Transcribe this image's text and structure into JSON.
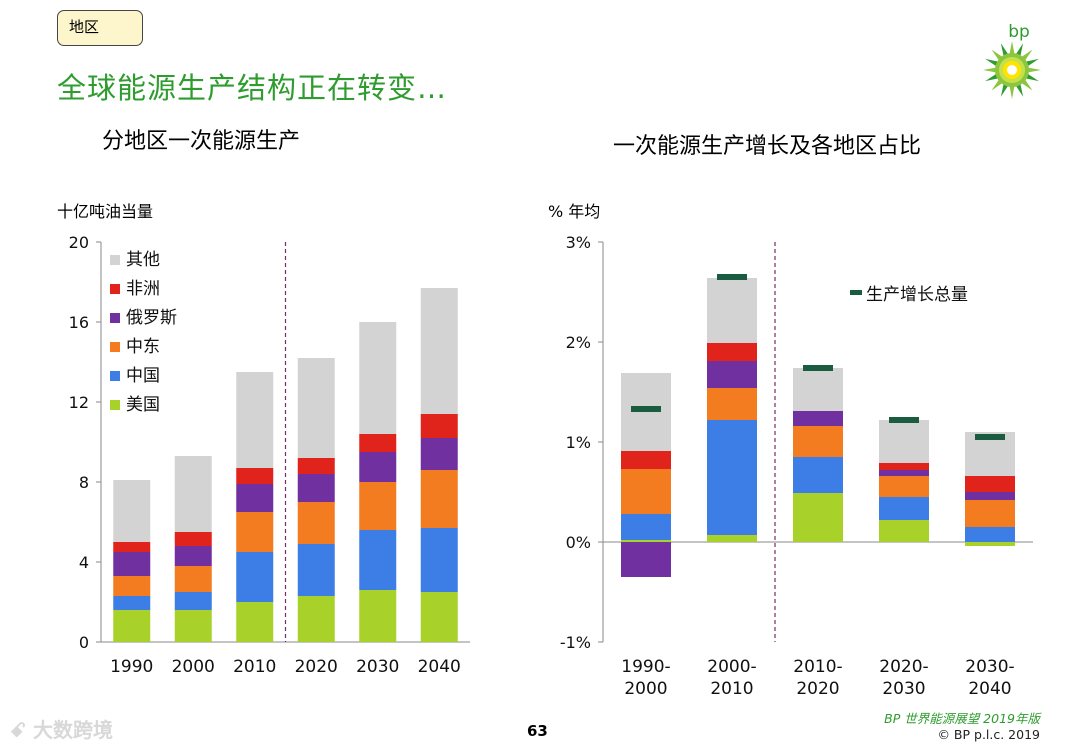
{
  "header": {
    "tag": "地区",
    "title": "全球能源生产结构正在转变…",
    "logo_text": "bp"
  },
  "left_subtitle": "分地区一次能源生产",
  "right_subtitle": "一次能源生产增长及各地区占比",
  "left_unit": "十亿吨油当量",
  "right_unit": "% 年均",
  "footer": {
    "page": "63",
    "source": "BP 世界能源展望 2019年版",
    "copyright": "© BP p.l.c. 2019",
    "watermark": "大数跨境"
  },
  "colors": {
    "other": "#d4d3d4",
    "africa": "#e0231b",
    "russia": "#7030a0",
    "middle_east": "#f47c20",
    "china": "#3c7ee5",
    "us": "#a8d22a",
    "total": "#1a5c40",
    "title": "#2e9c2e"
  },
  "chart_data": [
    {
      "type": "bar",
      "stacked": true,
      "title": "分地区一次能源生产",
      "ylabel": "十亿吨油当量",
      "categories": [
        "1990",
        "2000",
        "2010",
        "2020",
        "2030",
        "2040"
      ],
      "ylim": [
        0,
        20
      ],
      "yticks": [
        0,
        4,
        8,
        12,
        16,
        20
      ],
      "ytick_labels": [
        "0",
        "4",
        "8",
        "12",
        "16",
        "20"
      ],
      "divider_after_index": 2,
      "legend": [
        "其他",
        "非洲",
        "俄罗斯",
        "中东",
        "中国",
        "美国"
      ],
      "series": [
        {
          "name": "美国",
          "key": "us",
          "values": [
            1.6,
            1.6,
            2.0,
            2.3,
            2.6,
            2.5
          ]
        },
        {
          "name": "中国",
          "key": "china",
          "values": [
            0.7,
            0.9,
            2.5,
            2.6,
            3.0,
            3.2
          ]
        },
        {
          "name": "中东",
          "key": "middle_east",
          "values": [
            1.0,
            1.3,
            2.0,
            2.1,
            2.4,
            2.9
          ]
        },
        {
          "name": "俄罗斯",
          "key": "russia",
          "values": [
            1.2,
            1.0,
            1.4,
            1.4,
            1.5,
            1.6
          ]
        },
        {
          "name": "非洲",
          "key": "africa",
          "values": [
            0.5,
            0.7,
            0.8,
            0.8,
            0.9,
            1.2
          ]
        },
        {
          "name": "其他",
          "key": "other",
          "values": [
            3.1,
            3.8,
            4.8,
            5.0,
            5.6,
            6.3
          ]
        }
      ]
    },
    {
      "type": "bar",
      "stacked": true,
      "title": "一次能源生产增长及各地区占比",
      "ylabel": "% 年均",
      "categories": [
        "1990-\n2000",
        "2000-\n2010",
        "2010-\n2020",
        "2020-\n2030",
        "2030-\n2040"
      ],
      "ylim": [
        -1,
        3
      ],
      "yticks": [
        -1,
        0,
        1,
        2,
        3
      ],
      "ytick_labels": [
        "-1%",
        "0%",
        "1%",
        "2%",
        "3%"
      ],
      "divider_after_index": 1,
      "total_label": "生产增长总量",
      "totals": [
        1.33,
        2.65,
        1.74,
        1.22,
        1.05
      ],
      "series": [
        {
          "name": "美国",
          "key": "us",
          "values": [
            0.02,
            0.07,
            0.49,
            0.22,
            -0.04
          ]
        },
        {
          "name": "中国",
          "key": "china",
          "values": [
            0.26,
            1.15,
            0.36,
            0.23,
            0.15
          ]
        },
        {
          "name": "中东",
          "key": "middle_east",
          "values": [
            0.45,
            0.32,
            0.31,
            0.21,
            0.27
          ]
        },
        {
          "name": "俄罗斯",
          "key": "russia",
          "values": [
            -0.35,
            0.27,
            0.15,
            0.06,
            0.08
          ]
        },
        {
          "name": "非洲",
          "key": "africa",
          "values": [
            0.18,
            0.18,
            0.0,
            0.07,
            0.16
          ]
        },
        {
          "name": "其他",
          "key": "other",
          "values": [
            0.78,
            0.65,
            0.43,
            0.43,
            0.44
          ]
        }
      ]
    }
  ]
}
